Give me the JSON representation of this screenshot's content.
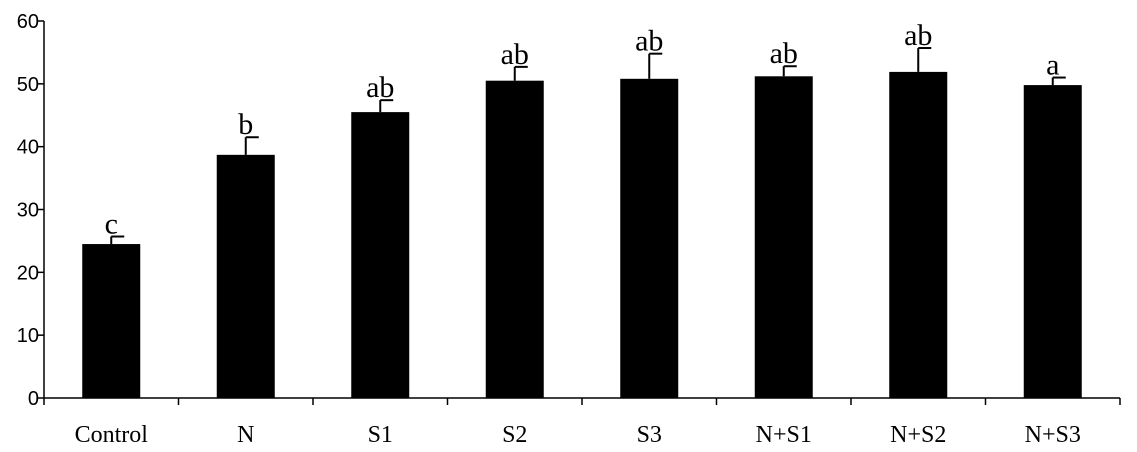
{
  "chart_data": {
    "type": "bar",
    "categories": [
      "Control",
      "N",
      "S1",
      "S2",
      "S3",
      "N+S1",
      "N+S2",
      "N+S3"
    ],
    "values": [
      24.5,
      38.7,
      45.5,
      50.5,
      50.8,
      51.2,
      51.9,
      49.8
    ],
    "errors": [
      1.2,
      2.8,
      1.9,
      2.2,
      4.0,
      1.6,
      3.8,
      1.2
    ],
    "significance_labels": [
      "c",
      "b",
      "ab",
      "ab",
      "ab",
      "ab",
      "ab",
      "a"
    ],
    "ylim": [
      0,
      60
    ],
    "yticks": [
      "0",
      "10",
      "20",
      "30",
      "40",
      "50",
      "60"
    ],
    "bar_color": "#000000",
    "grid": false,
    "title": "",
    "xlabel": "",
    "ylabel": ""
  }
}
